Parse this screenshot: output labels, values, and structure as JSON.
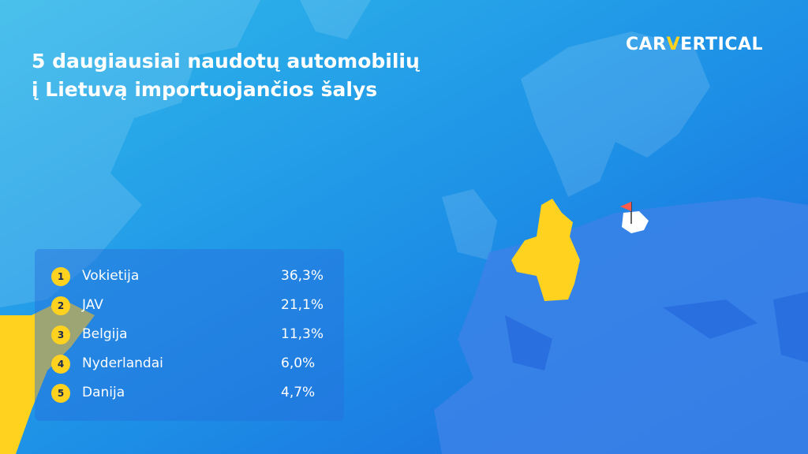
{
  "logo": {
    "parts": [
      "CAR",
      "V",
      "ERTICAL"
    ]
  },
  "header": {
    "title_lines": [
      "5 daugiausiai naudotų automobilių",
      "į Lietuvą importuojančios šalys"
    ]
  },
  "table": {
    "rows": [
      [
        "1",
        "Vokietija",
        "36,3%"
      ],
      [
        "2",
        "JAV",
        "21,1%"
      ],
      [
        "3",
        "Belgija",
        "11,3%"
      ],
      [
        "4",
        "Nyderlandai",
        "6,0%"
      ],
      [
        "5",
        "Danija",
        "4,7%"
      ]
    ]
  }
}
